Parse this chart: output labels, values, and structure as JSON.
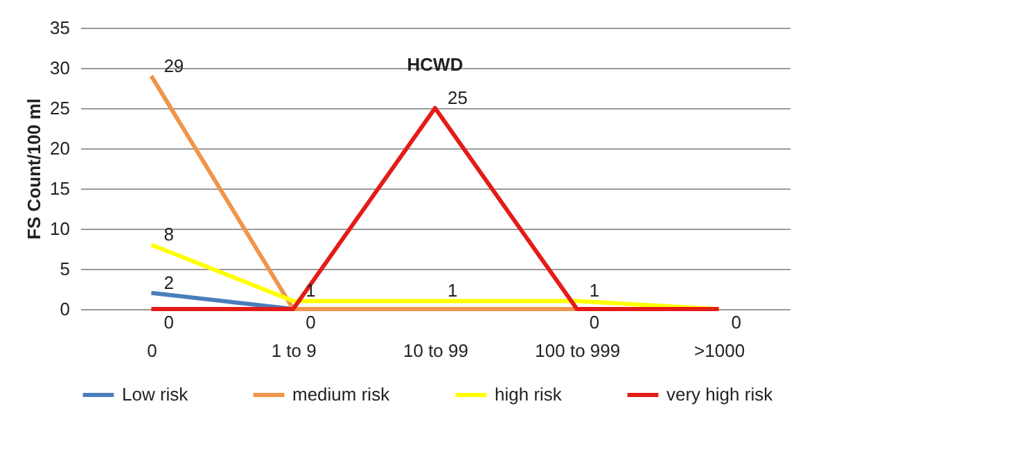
{
  "chart_data": {
    "type": "line",
    "title": "HCWD",
    "ylabel": "FS Count/100 ml",
    "categories": [
      "0",
      "1 to 9",
      "10 to 99",
      "100 to 999",
      ">1000"
    ],
    "series": [
      {
        "name": "Low risk",
        "color": "#4a7ebb",
        "values": [
          2,
          0,
          null,
          null,
          null
        ],
        "value_labels": [
          "2",
          null,
          null,
          null,
          null
        ]
      },
      {
        "name": "medium risk",
        "color": "#f0954a",
        "values": [
          29,
          0,
          0,
          0,
          0
        ],
        "value_labels": [
          "29",
          null,
          null,
          null,
          null
        ]
      },
      {
        "name": "high risk",
        "color": "#ffff00",
        "values": [
          8,
          1,
          1,
          1,
          0
        ],
        "value_labels": [
          "8",
          "1",
          "1",
          "1",
          null
        ]
      },
      {
        "name": "very high risk",
        "color": "#e41b17",
        "values": [
          0,
          0,
          25,
          0,
          0
        ],
        "value_labels": [
          "0",
          "0",
          "25",
          "0",
          "0"
        ]
      }
    ],
    "ylim": [
      0,
      35
    ],
    "yticks": [
      0,
      5,
      10,
      15,
      20,
      25,
      30,
      35
    ],
    "grid": "y",
    "legend": "bottom",
    "marker": "none",
    "line_style": "solid"
  }
}
